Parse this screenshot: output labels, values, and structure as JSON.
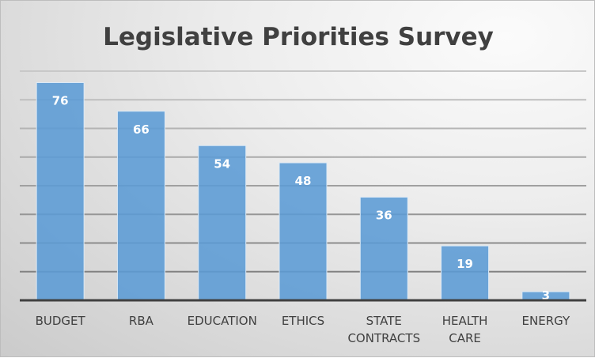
{
  "chart_data": {
    "type": "bar",
    "title": "Legislative Priorities Survey",
    "categories": [
      [
        "BUDGET"
      ],
      [
        "RBA"
      ],
      [
        "EDUCATION"
      ],
      [
        "ETHICS"
      ],
      [
        "STATE",
        "CONTRACTS"
      ],
      [
        "HEALTH",
        "CARE"
      ],
      [
        "ENERGY"
      ]
    ],
    "values": [
      76,
      66,
      54,
      48,
      36,
      19,
      3
    ],
    "xlabel": "",
    "ylabel": "",
    "ylim": [
      0,
      80
    ],
    "gridline_step": 10,
    "grid": true,
    "data_labels": true,
    "bar_color": "#5b9bd5"
  }
}
